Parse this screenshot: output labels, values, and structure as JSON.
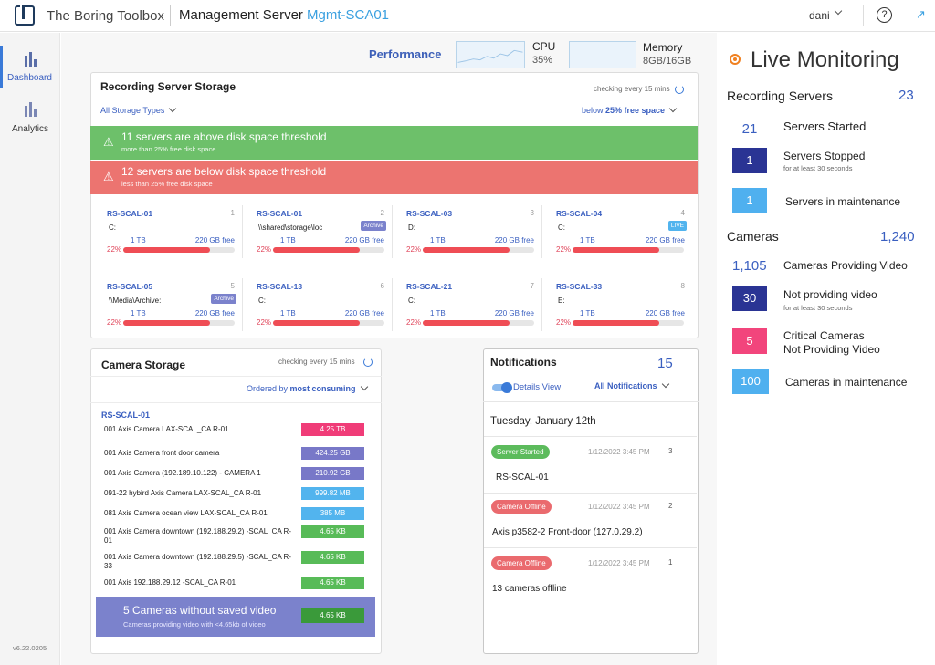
{
  "header": {
    "brand": "The Boring Toolbox",
    "server_label": "Management Server",
    "server_id": "Mgmt-SCA01",
    "user": "dani",
    "help": "?",
    "expand": "↗"
  },
  "nav": {
    "items": [
      {
        "label": "Dashboard"
      },
      {
        "label": "Analytics"
      }
    ],
    "version": "v6.22.0205"
  },
  "performance": {
    "label": "Performance",
    "cpu_label": "CPU",
    "cpu_value": "35%",
    "memory_label": "Memory",
    "memory_value": "8GB/16GB"
  },
  "recording_storage": {
    "title": "Recording Server Storage",
    "checking": "checking every 15 mins",
    "filter": "All Storage Types",
    "threshold_prefix": "below ",
    "threshold_value": "25% free space",
    "above": {
      "title": "11 servers are above disk space threshold",
      "sub": "more than 25% free disk space",
      "color": "#6dc06a"
    },
    "below": {
      "title": "12 servers are below disk space threshold",
      "sub": "less than 25% free disk space",
      "color": "#ec7470"
    },
    "servers": [
      {
        "name": "RS-SCAL-01",
        "idx": "1",
        "drive": "C:",
        "tag": "",
        "total": "1 TB",
        "free": "220 GB free",
        "pct": "22%",
        "fill": 0.78
      },
      {
        "name": "RS-SCAL-01",
        "idx": "2",
        "drive": "\\\\shared\\storage\\loc",
        "tag": "Archive",
        "total": "1 TB",
        "free": "220 GB free",
        "pct": "22%",
        "fill": 0.78
      },
      {
        "name": "RS-SCAL-03",
        "idx": "3",
        "drive": "D:",
        "tag": "",
        "total": "1 TB",
        "free": "220 GB free",
        "pct": "22%",
        "fill": 0.78
      },
      {
        "name": "RS-SCAL-04",
        "idx": "4",
        "drive": "C:",
        "tag": "LIVE",
        "total": "1 TB",
        "free": "220 GB free",
        "pct": "22%",
        "fill": 0.78
      },
      {
        "name": "RS-SCAL-05",
        "idx": "5",
        "drive": "\\\\Media\\Archive:",
        "tag": "Archive",
        "total": "1 TB",
        "free": "220 GB free",
        "pct": "22%",
        "fill": 0.78
      },
      {
        "name": "RS-SCAL-13",
        "idx": "6",
        "drive": "C:",
        "tag": "",
        "total": "1 TB",
        "free": "220 GB free",
        "pct": "22%",
        "fill": 0.78
      },
      {
        "name": "RS-SCAL-21",
        "idx": "7",
        "drive": "C:",
        "tag": "",
        "total": "1 TB",
        "free": "220 GB free",
        "pct": "22%",
        "fill": 0.78
      },
      {
        "name": "RS-SCAL-33",
        "idx": "8",
        "drive": "E:",
        "tag": "",
        "total": "1 TB",
        "free": "220 GB free",
        "pct": "22%",
        "fill": 0.78
      }
    ]
  },
  "camera_storage": {
    "title": "Camera Storage",
    "checking": "checking every 15 mins",
    "order_prefix": "Ordered by ",
    "order_value": "most consuming",
    "server": "RS-SCAL-01",
    "cameras": [
      {
        "name": "001 Axis Camera LAX-SCAL_CA R-01",
        "size": "4.25 TB",
        "color": "#f03c78"
      },
      {
        "name": "001 Axis Camera front door camera",
        "size": "424.25 GB",
        "color": "#7878c8"
      },
      {
        "name": "001 Axis Camera (192.189.10.122) - CAMERA 1",
        "size": "210.92 GB",
        "color": "#7878c8"
      },
      {
        "name": "091-22 hybird Axis Camera LAX-SCAL_CA R-01",
        "size": "999.82 MB",
        "color": "#52b4ee"
      },
      {
        "name": "081 Axis Camera ocean view LAX-SCAL_CA R-01",
        "size": "385 MB",
        "color": "#52b4ee"
      },
      {
        "name": "001 Axis Camera downtown (192.188.29.2) -SCAL_CA R-01",
        "size": "4.65 KB",
        "color": "#58bb58"
      },
      {
        "name": "001 Axis Camera downtown (192.188.29.5) -SCAL_CA R-33",
        "size": "4.65 KB",
        "color": "#58bb58"
      },
      {
        "name": "001 Axis 192.188.29.12 -SCAL_CA R-01",
        "size": "4.65 KB",
        "color": "#58bb58"
      }
    ],
    "summary": {
      "title": "5 Cameras without saved video",
      "sub": "Cameras providing video with <4.65kb of video",
      "size": "4.65 KB"
    }
  },
  "notifications": {
    "title": "Notifications",
    "count": "15",
    "details_view": "Details View",
    "filter": "All Notifications",
    "date": "Tuesday, January 12th",
    "items": [
      {
        "tag": "Server Started",
        "tag_color": "#5cbb5c",
        "time": "1/12/2022 3:45 PM",
        "idx": "3",
        "text": "RS-SCAL-01"
      },
      {
        "tag": "Camera Offline",
        "tag_color": "#ea6a6e",
        "time": "1/12/2022 3:45 PM",
        "idx": "2",
        "text": "Axis p3582-2 Front-door (127.0.29.2)"
      },
      {
        "tag": "Camera Offline",
        "tag_color": "#ea6a6e",
        "time": "1/12/2022 3:45 PM",
        "idx": "1",
        "text": "13 cameras offline"
      }
    ]
  },
  "live": {
    "title": "Live Monitoring",
    "rec_label": "Recording Servers",
    "rec_count": "23",
    "started": {
      "value": "21",
      "label": "Servers Started"
    },
    "stopped": {
      "value": "1",
      "label": "Servers Stopped",
      "sub": "for at least 30 seconds",
      "color": "#2a3494"
    },
    "maint": {
      "value": "1",
      "label": "Servers in maintenance",
      "color": "#4fb0ef"
    },
    "cam_label": "Cameras",
    "cam_count": "1,240",
    "providing": {
      "value": "1,105",
      "label": "Cameras Providing Video"
    },
    "notprov": {
      "value": "30",
      "label": "Not providing video",
      "sub": "for at least 30 seconds",
      "color": "#2a3494"
    },
    "critical": {
      "value": "5",
      "label1": "Critical Cameras",
      "label2": "Not Providing Video",
      "color": "#f2457c"
    },
    "cmaint": {
      "value": "100",
      "label": "Cameras in maintenance",
      "color": "#4fb0ef"
    }
  }
}
